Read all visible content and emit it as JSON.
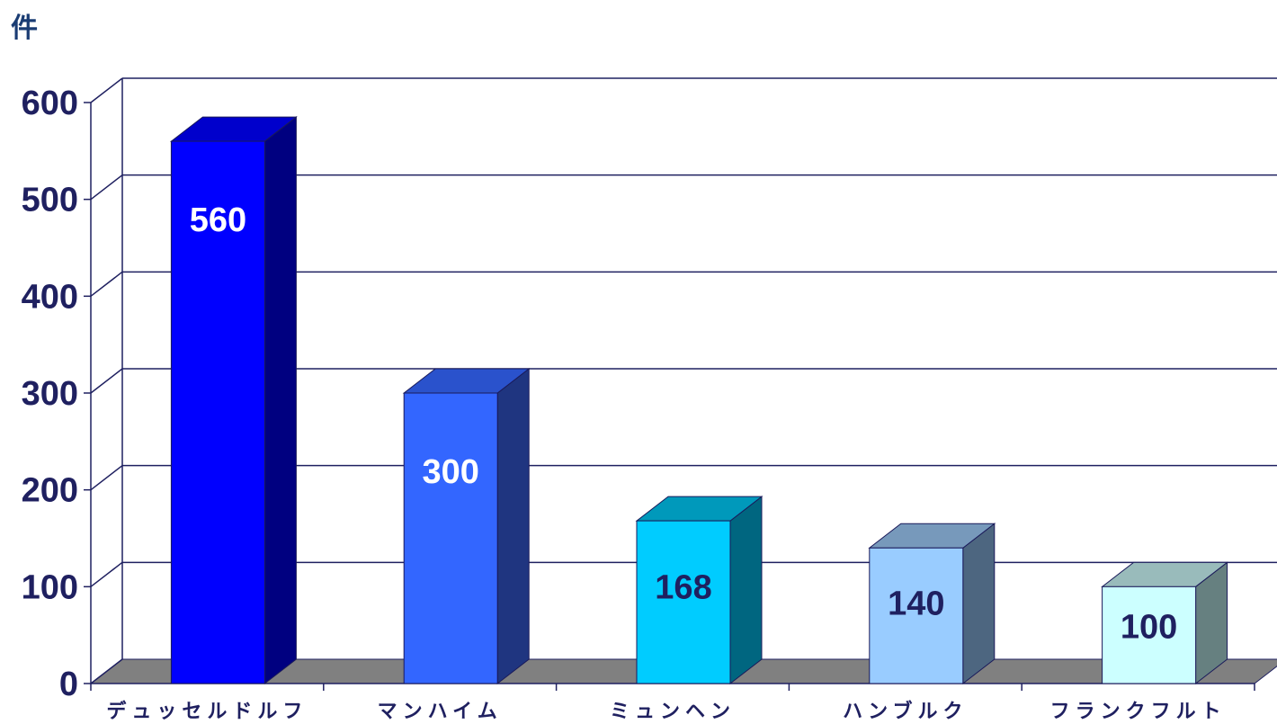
{
  "chart_data": {
    "type": "bar",
    "unit_label": "件",
    "categories": [
      "デュッセルドルフ",
      "マンハイム",
      "ミュンヘン",
      "ハンブルク",
      "フランクフルト"
    ],
    "values": [
      560,
      300,
      168,
      140,
      100
    ],
    "data_labels": [
      "560",
      "300",
      "168",
      "140",
      "100"
    ],
    "yticks": [
      "0",
      "100",
      "200",
      "300",
      "400",
      "500",
      "600"
    ],
    "ylim": [
      0,
      600
    ],
    "grid": true,
    "style": "3d-column",
    "colors": {
      "front": [
        "#0000ff",
        "#3366ff",
        "#00ccff",
        "#99ccff",
        "#ccffff"
      ],
      "side": [
        "#000080",
        "#1f3580",
        "#006680",
        "#4d6680",
        "#668080"
      ],
      "top": [
        "#0000cc",
        "#2a52cc",
        "#0099bb",
        "#7799bb",
        "#99bbbb"
      ],
      "label": [
        "#ffffff",
        "#ffffff",
        "#1f2060",
        "#1f2060",
        "#1f2060"
      ],
      "axis": "#1f2060",
      "floor": "#808080"
    }
  }
}
